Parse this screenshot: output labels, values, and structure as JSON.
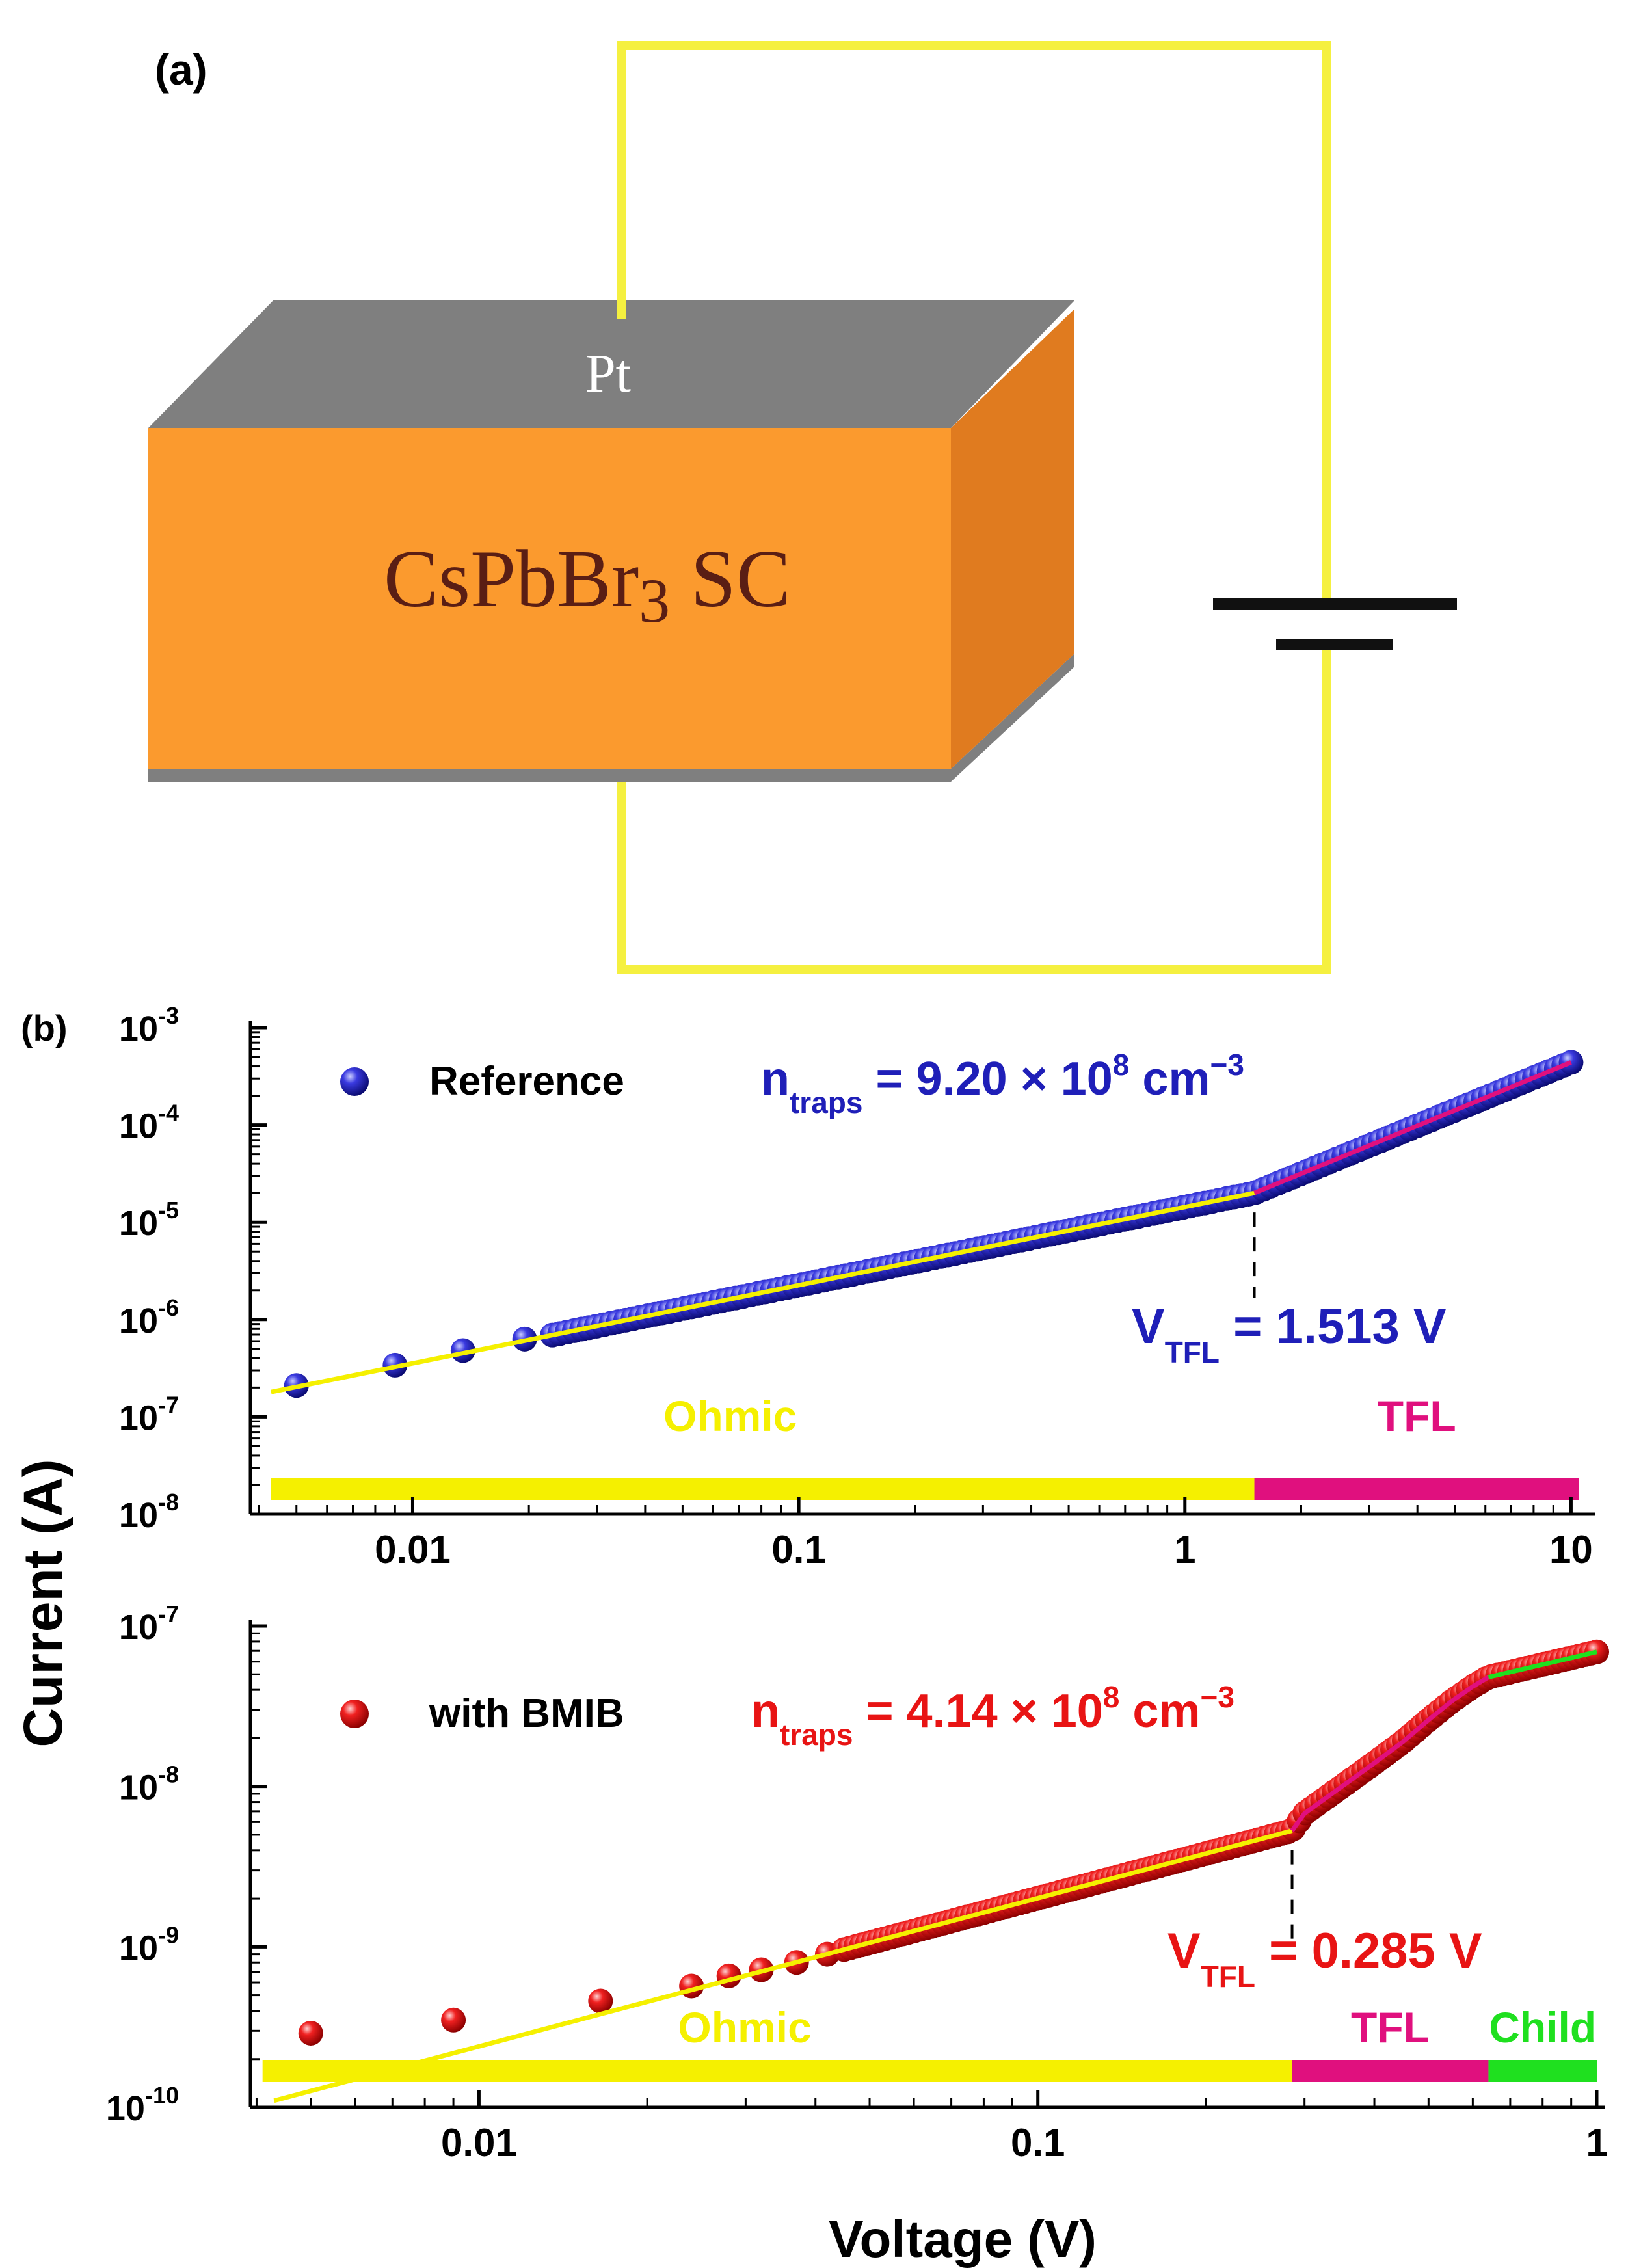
{
  "panel_a": {
    "label": "(a)",
    "electrode_label": "Pt",
    "crystal_label_main": "CsPbBr",
    "crystal_label_sub": "3",
    "crystal_label_tail": " SC",
    "colors": {
      "crystal_front": "#FB9A2E",
      "crystal_side": "#E07B1F",
      "electrode": "#7F7F7F",
      "wire": "#F5F040",
      "battery": "#111111"
    }
  },
  "panel_b_label": "(b)",
  "ylabel": "Current (A)",
  "xlabel": "Voltage (V)",
  "colors": {
    "ohmic": "#F5F000",
    "tfl": "#E0107E",
    "child": "#1FE01F",
    "reference": "#1F1FB8",
    "bmib": "#E81414",
    "fit_ohmic": "#F5F000",
    "fit_tfl": "#E0107E",
    "fit_child": "#1FE01F"
  },
  "chart_data": [
    {
      "type": "scatter",
      "xscale": "log",
      "yscale": "log",
      "xlim": [
        0.0038,
        11
      ],
      "ylim": [
        1e-08,
        0.001
      ],
      "xticks": [
        0.01,
        0.1,
        1,
        10
      ],
      "xtick_labels": [
        "0.01",
        "0.1",
        "1",
        "10"
      ],
      "yticks": [
        1e-08,
        1e-07,
        1e-06,
        1e-05,
        0.0001,
        0.001
      ],
      "ytick_mantissa": [
        "10",
        "10",
        "10",
        "10",
        "10",
        "10"
      ],
      "ytick_exponents": [
        "-8",
        "-7",
        "-6",
        "-5",
        "-4",
        "-3"
      ],
      "legend": {
        "name": "Reference"
      },
      "ntraps": {
        "n": "n",
        "sub": "traps",
        "value": " = 9.20 × 10",
        "exp": "8",
        "unit": " cm",
        "unit_exp": "−3"
      },
      "vtfl": {
        "v": "V",
        "sub": "TFL",
        "value": " = 1.513 V",
        "voltage": 1.513
      },
      "regions": [
        {
          "name": "Ohmic",
          "from": 0.0043,
          "to": 1.513
        },
        {
          "name": "TFL",
          "from": 1.513,
          "to": 10.5
        }
      ],
      "points_sparse": [
        [
          0.005,
          2.1e-07
        ],
        [
          0.009,
          3.4e-07
        ],
        [
          0.0135,
          4.8e-07
        ],
        [
          0.0195,
          6.3e-07
        ]
      ],
      "dense_range": [
        0.023,
        10
      ],
      "ohmic_fit": {
        "x": [
          0.0043,
          1.513
        ],
        "y": [
          1.8e-07,
          2e-05
        ]
      },
      "tfl_fit": {
        "x": [
          1.513,
          10
        ],
        "y": [
          2e-05,
          0.00044
        ]
      }
    },
    {
      "type": "scatter",
      "xscale": "log",
      "yscale": "log",
      "xlim": [
        0.0039,
        1.0
      ],
      "ylim": [
        1e-10,
        1e-07
      ],
      "xticks": [
        0.01,
        0.1,
        1
      ],
      "xtick_labels": [
        "0.01",
        "0.1",
        "1"
      ],
      "yticks": [
        1e-10,
        1e-09,
        1e-08,
        1e-07
      ],
      "ytick_mantissa": [
        "10",
        "10",
        "10",
        "10"
      ],
      "ytick_exponents": [
        "-10",
        "-9",
        "-8",
        "-7"
      ],
      "legend": {
        "name": "with BMIB"
      },
      "ntraps": {
        "n": "n",
        "sub": "traps",
        "value": " = 4.14 × 10",
        "exp": "8",
        "unit": " cm",
        "unit_exp": "−3"
      },
      "vtfl": {
        "v": "V",
        "sub": "TFL",
        "value": " = 0.285 V",
        "voltage": 0.285
      },
      "regions": [
        {
          "name": "Ohmic",
          "from": 0.0041,
          "to": 0.285
        },
        {
          "name": "TFL",
          "from": 0.285,
          "to": 0.64
        },
        {
          "name": "Child",
          "from": 0.64,
          "to": 1.0
        }
      ],
      "points_sparse": [
        [
          0.005,
          2.9e-10
        ],
        [
          0.009,
          3.5e-10
        ],
        [
          0.0165,
          4.6e-10
        ],
        [
          0.024,
          5.7e-10
        ],
        [
          0.028,
          6.6e-10
        ],
        [
          0.032,
          7.2e-10
        ],
        [
          0.037,
          8e-10
        ],
        [
          0.042,
          9e-10
        ]
      ],
      "dense_range": [
        0.045,
        1.0
      ],
      "ohmic_fit": {
        "x": [
          0.0043,
          0.285
        ],
        "y": [
          1.1e-10,
          5.3e-09
        ]
      },
      "tfl_fit": {
        "x": [
          0.285,
          0.3,
          0.35,
          0.4,
          0.45,
          0.5,
          0.55,
          0.6,
          0.64
        ],
        "y": [
          5.3e-09,
          6.8e-09,
          1e-08,
          1.4e-08,
          1.9e-08,
          2.6e-08,
          3.4e-08,
          4.2e-08,
          4.8e-08
        ]
      },
      "child_fit": {
        "x": [
          0.64,
          1.0
        ],
        "y": [
          4.8e-08,
          6.9e-08
        ]
      }
    }
  ]
}
